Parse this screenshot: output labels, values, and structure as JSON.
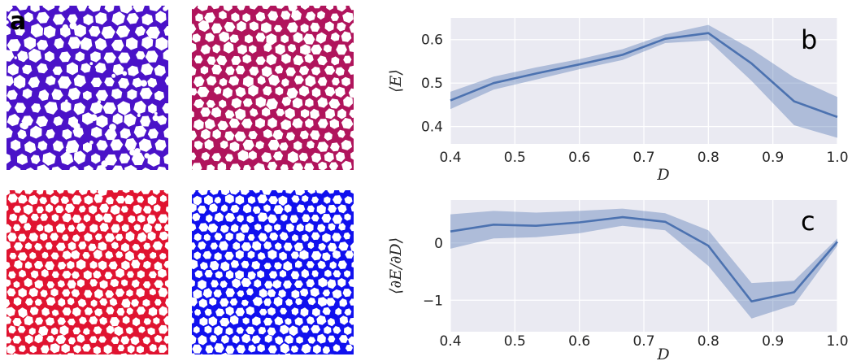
{
  "panel_labels": {
    "a": "a",
    "b": "b",
    "c": "c"
  },
  "foam_images": [
    {
      "name": "foam-image-purple",
      "color": "#4a12c8",
      "cells": 11,
      "seed": 11,
      "bubbles": true
    },
    {
      "name": "foam-image-magenta",
      "color": "#b0145c",
      "cells": 13,
      "seed": 23,
      "bubbles": false
    },
    {
      "name": "foam-image-red",
      "color": "#e01330",
      "cells": 15,
      "seed": 37,
      "bubbles": false
    },
    {
      "name": "foam-image-blue",
      "color": "#1010ee",
      "cells": 15,
      "seed": 53,
      "bubbles": false
    }
  ],
  "chart_data": [
    {
      "type": "line",
      "panel": "b",
      "xlabel": "D",
      "ylabel": "⟨E⟩",
      "xlim": [
        0.4,
        1.0
      ],
      "ylim": [
        0.36,
        0.65
      ],
      "xticks": [
        "0.4",
        "0.5",
        "0.6",
        "0.7",
        "0.8",
        "0.9",
        "1.0"
      ],
      "yticks": [
        "0.4",
        "0.5",
        "0.6"
      ],
      "x": [
        0.4,
        0.467,
        0.533,
        0.6,
        0.667,
        0.733,
        0.8,
        0.867,
        0.933,
        1.0
      ],
      "series": [
        {
          "values": [
            0.46,
            0.5,
            0.522,
            0.543,
            0.565,
            0.602,
            0.615,
            0.545,
            0.458,
            0.422
          ],
          "lower": [
            0.44,
            0.485,
            0.508,
            0.532,
            0.553,
            0.592,
            0.598,
            0.505,
            0.403,
            0.374
          ],
          "upper": [
            0.48,
            0.515,
            0.536,
            0.555,
            0.578,
            0.612,
            0.634,
            0.578,
            0.513,
            0.468
          ],
          "color": "#4c72b0"
        }
      ],
      "grid": true,
      "background": "#eaeaf2"
    },
    {
      "type": "line",
      "panel": "c",
      "xlabel": "D",
      "ylabel": "⟨∂E/∂D⟩",
      "xlim": [
        0.4,
        1.0
      ],
      "ylim": [
        -1.55,
        0.75
      ],
      "xticks": [
        "0.4",
        "0.5",
        "0.6",
        "0.7",
        "0.8",
        "0.9",
        "1.0"
      ],
      "yticks": [
        "−1",
        "0"
      ],
      "x": [
        0.4,
        0.467,
        0.533,
        0.6,
        0.667,
        0.733,
        0.8,
        0.867,
        0.933,
        1.0
      ],
      "series": [
        {
          "values": [
            0.2,
            0.32,
            0.3,
            0.36,
            0.45,
            0.37,
            -0.05,
            -1.02,
            -0.86,
            0.02
          ],
          "lower": [
            -0.1,
            0.08,
            0.1,
            0.17,
            0.3,
            0.22,
            -0.4,
            -1.32,
            -1.08,
            -0.05
          ],
          "upper": [
            0.5,
            0.56,
            0.53,
            0.56,
            0.6,
            0.52,
            0.22,
            -0.7,
            -0.66,
            0.08
          ],
          "color": "#4c72b0"
        }
      ],
      "grid": true,
      "background": "#eaeaf2"
    }
  ]
}
